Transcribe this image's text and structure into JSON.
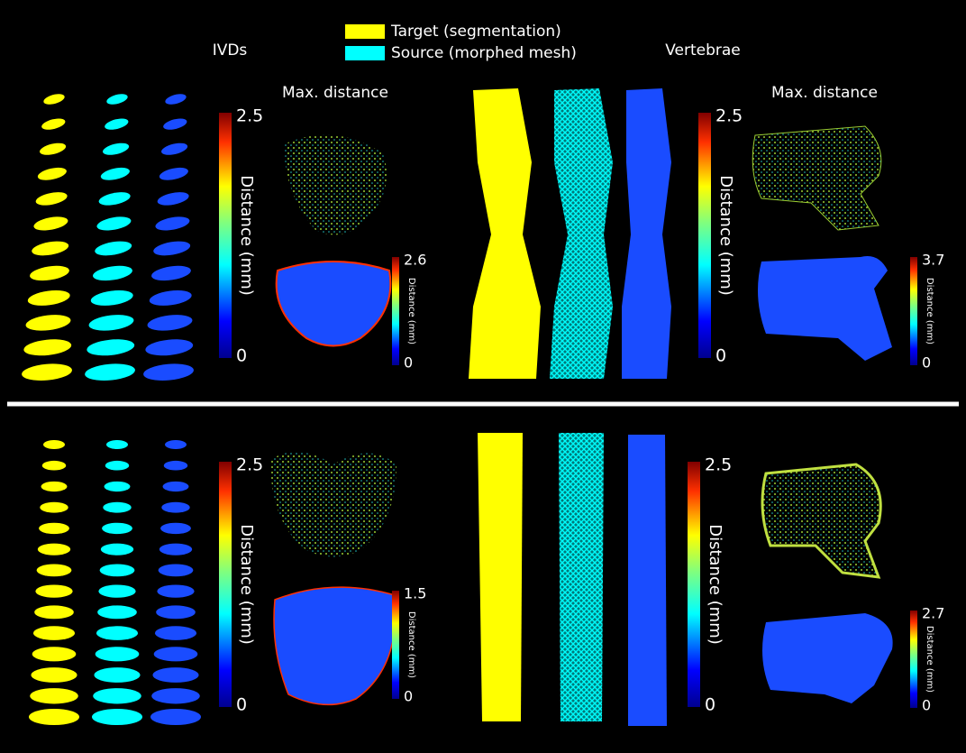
{
  "legend": {
    "items": [
      {
        "label": "Target (segmentation)",
        "color": "#ffff00"
      },
      {
        "label": "Source (morphed mesh)",
        "color": "#00ffff"
      }
    ]
  },
  "headers": {
    "ivds": "IVDs",
    "vertebrae": "Vertebrae",
    "max_distance_left": "Max. distance",
    "max_distance_right": "Max. distance"
  },
  "rows": [
    {
      "ivds": {
        "colorbar": {
          "label": "Distance (mm)",
          "max": 2.5,
          "min": 0
        },
        "detail_colorbar": {
          "label": "Distance (mm)",
          "max": 2.6,
          "min": 0
        }
      },
      "vertebrae": {
        "colorbar": {
          "label": "Distance (mm)",
          "max": 2.5,
          "min": 0
        },
        "detail_colorbar": {
          "label": "Distance (mm)",
          "max": 3.7,
          "min": 0
        }
      }
    },
    {
      "ivds": {
        "colorbar": {
          "label": "Distance (mm)",
          "max": 2.5,
          "min": 0
        },
        "detail_colorbar": {
          "label": "Distance (mm)",
          "max": 1.5,
          "min": 0
        }
      },
      "vertebrae": {
        "colorbar": {
          "label": "Distance (mm)",
          "max": 2.5,
          "min": 0
        },
        "detail_colorbar": {
          "label": "Distance (mm)",
          "max": 2.7,
          "min": 0
        }
      }
    }
  ]
}
